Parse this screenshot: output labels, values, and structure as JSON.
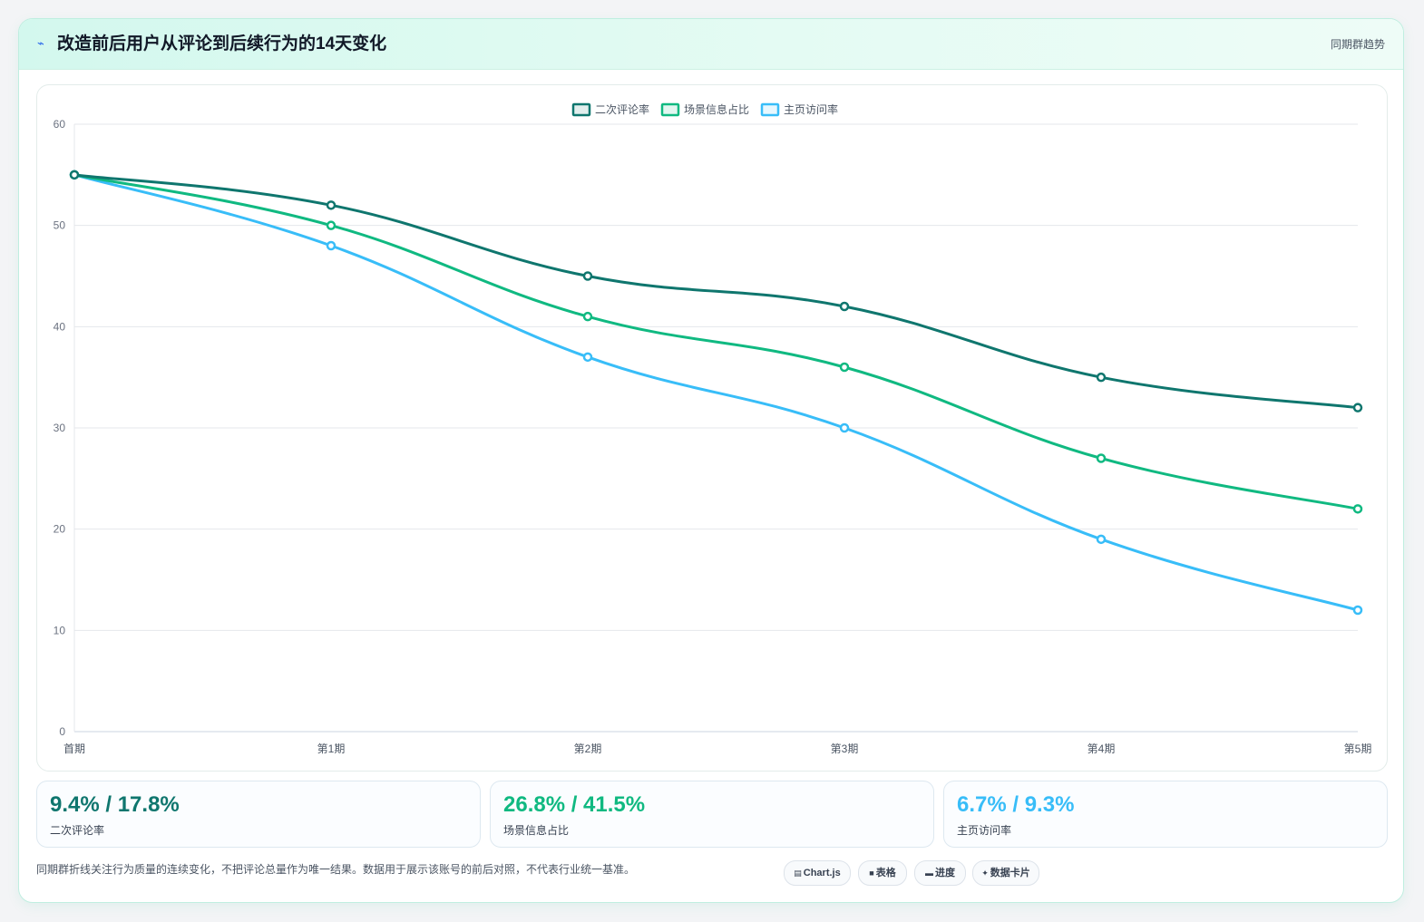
{
  "header": {
    "icon": "zigzag-icon",
    "title": "改造前后用户从评论到后续行为的14天变化",
    "tag": "同期群趋势"
  },
  "chart_data": {
    "type": "line",
    "categories": [
      "首期",
      "第1期",
      "第2期",
      "第3期",
      "第4期",
      "第5期"
    ],
    "series": [
      {
        "name": "二次评论率",
        "values": [
          55,
          52,
          45,
          42,
          35,
          32
        ],
        "color": "#0f766e"
      },
      {
        "name": "场景信息占比",
        "values": [
          55,
          50,
          41,
          36,
          27,
          22
        ],
        "color": "#10b981"
      },
      {
        "name": "主页访问率",
        "values": [
          55,
          48,
          37,
          30,
          19,
          12
        ],
        "color": "#38bdf8"
      }
    ],
    "ylim": [
      0,
      60
    ],
    "yticks": [
      0,
      10,
      20,
      30,
      40,
      50,
      60
    ],
    "grid": true,
    "legend": "top-center"
  },
  "stats": [
    {
      "value": "9.4% / 17.8%",
      "label": "二次评论率",
      "color": "#0f766e"
    },
    {
      "value": "26.8% / 41.5%",
      "label": "场景信息占比",
      "color": "#10b981"
    },
    {
      "value": "6.7% / 9.3%",
      "label": "主页访问率",
      "color": "#38bdf8"
    }
  ],
  "footnote": "同期群折线关注行为质量的连续变化，不把评论总量作为唯一结果。数据用于展示该账号的前后对照，不代表行业统一基准。",
  "pills": [
    {
      "icon": "chart-icon",
      "glyph": "▤",
      "label": "Chart.js"
    },
    {
      "icon": "table-icon",
      "glyph": "■",
      "label": "表格"
    },
    {
      "icon": "progress-icon",
      "glyph": "▬",
      "label": "进度"
    },
    {
      "icon": "sparkle-icon",
      "glyph": "✦",
      "label": "数据卡片"
    }
  ]
}
